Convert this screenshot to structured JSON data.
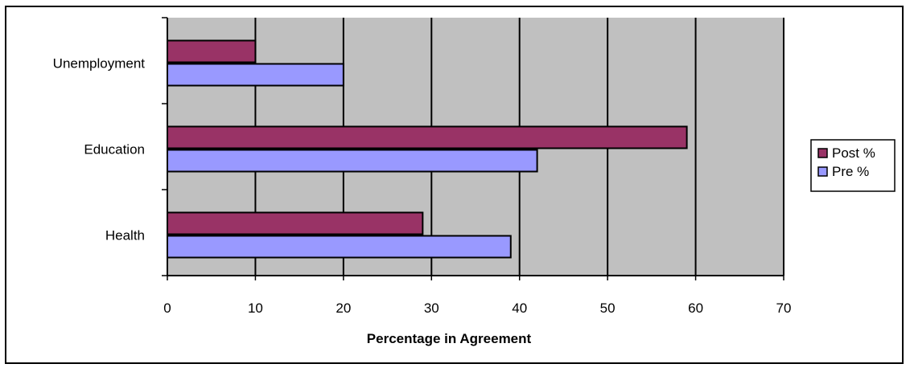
{
  "chart_data": {
    "type": "bar",
    "orientation": "horizontal",
    "categories": [
      "Unemployment",
      "Education",
      "Health"
    ],
    "series": [
      {
        "name": "Post %",
        "values": [
          10,
          59,
          29
        ],
        "color": "#993366"
      },
      {
        "name": "Pre %",
        "values": [
          20,
          42,
          39
        ],
        "color": "#9999ff"
      }
    ],
    "xlabel": "Percentage in Agreement",
    "ylabel": "",
    "xlim": [
      0,
      70
    ],
    "x_ticks": [
      "0",
      "10",
      "20",
      "30",
      "40",
      "50",
      "60",
      "70"
    ],
    "grid": "vertical",
    "plot_background": "#c0c0c0",
    "legend_position": "right"
  }
}
